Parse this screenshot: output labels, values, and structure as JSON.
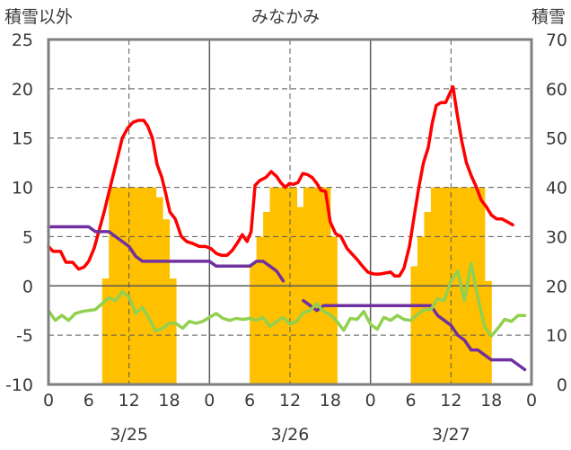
{
  "chart_data": {
    "type": "line",
    "title": "みなかみ",
    "left_axis_label": "積雪以外",
    "right_axis_label": "積雪",
    "y_left": {
      "min": -10,
      "max": 25,
      "ticks": [
        -10,
        -5,
        0,
        5,
        10,
        15,
        20,
        25
      ]
    },
    "y_right": {
      "min": 0,
      "max": 70,
      "ticks": [
        0,
        10,
        20,
        30,
        40,
        50,
        60,
        70
      ]
    },
    "x": {
      "min": 0,
      "max": 72,
      "hour_ticks": [
        0,
        6,
        12,
        18,
        0,
        6,
        12,
        18,
        0,
        6,
        12,
        18,
        0
      ],
      "day_boundaries": [
        24,
        48
      ],
      "dashed_hours": [
        12,
        36,
        60
      ]
    },
    "dates": [
      "3/25",
      "3/26",
      "3/27"
    ],
    "grid": true,
    "colors": {
      "red": "#ff0000",
      "purple": "#7030a0",
      "green": "#92d050",
      "bars": "#ffc000",
      "grid": "#595959",
      "frame": "#7f7f7f"
    },
    "series": [
      {
        "color_key": "red",
        "axis": "left",
        "points": [
          [
            0,
            4
          ],
          [
            0.7,
            3.5
          ],
          [
            1.8,
            3.5
          ],
          [
            2.6,
            2.4
          ],
          [
            3.6,
            2.4
          ],
          [
            4.5,
            1.7
          ],
          [
            5.3,
            1.9
          ],
          [
            6,
            2.5
          ],
          [
            6.8,
            3.8
          ],
          [
            7.5,
            5.5
          ],
          [
            8.3,
            7.5
          ],
          [
            9.2,
            10
          ],
          [
            10.1,
            12.5
          ],
          [
            11,
            15
          ],
          [
            11.8,
            16
          ],
          [
            12.6,
            16.6
          ],
          [
            13.4,
            16.8
          ],
          [
            14.2,
            16.8
          ],
          [
            14.8,
            16.2
          ],
          [
            15.5,
            15
          ],
          [
            16.2,
            12.3
          ],
          [
            16.9,
            11
          ],
          [
            17.5,
            9.3
          ],
          [
            18.1,
            7.5
          ],
          [
            18.9,
            6.8
          ],
          [
            19.8,
            5
          ],
          [
            20.6,
            4.5
          ],
          [
            21.5,
            4.3
          ],
          [
            22.5,
            4
          ],
          [
            23.4,
            4
          ],
          [
            24.2,
            3.8
          ],
          [
            25,
            3.3
          ],
          [
            25.8,
            3.1
          ],
          [
            26.6,
            3.1
          ],
          [
            27.4,
            3.6
          ],
          [
            28.2,
            4.4
          ],
          [
            28.9,
            5.2
          ],
          [
            29.6,
            4.5
          ],
          [
            30.2,
            5.5
          ],
          [
            30.8,
            10.2
          ],
          [
            31.5,
            10.7
          ],
          [
            32.4,
            11
          ],
          [
            33.2,
            11.6
          ],
          [
            34,
            11.1
          ],
          [
            34.6,
            10.5
          ],
          [
            35.3,
            10
          ],
          [
            35.9,
            10.4
          ],
          [
            36.5,
            10.3
          ],
          [
            37.2,
            10.5
          ],
          [
            37.9,
            11.4
          ],
          [
            38.6,
            11.3
          ],
          [
            39.3,
            11
          ],
          [
            40,
            10.4
          ],
          [
            40.6,
            9.7
          ],
          [
            41.3,
            9.6
          ],
          [
            42,
            6.5
          ],
          [
            42.8,
            5.3
          ],
          [
            43.6,
            5
          ],
          [
            44.5,
            3.8
          ],
          [
            45.3,
            3.2
          ],
          [
            46.1,
            2.6
          ],
          [
            46.8,
            2
          ],
          [
            47.6,
            1.4
          ],
          [
            48.5,
            1.2
          ],
          [
            49.4,
            1.2
          ],
          [
            50.2,
            1.3
          ],
          [
            51,
            1.4
          ],
          [
            51.6,
            1
          ],
          [
            52.3,
            1
          ],
          [
            53,
            1.8
          ],
          [
            53.8,
            4
          ],
          [
            54.5,
            7
          ],
          [
            55.2,
            10
          ],
          [
            55.9,
            12.5
          ],
          [
            56.6,
            14
          ],
          [
            57.2,
            16.5
          ],
          [
            57.8,
            18.3
          ],
          [
            58.5,
            18.6
          ],
          [
            59.2,
            18.6
          ],
          [
            59.8,
            19.5
          ],
          [
            60.3,
            20.2
          ],
          [
            60.9,
            17.5
          ],
          [
            61.6,
            14.7
          ],
          [
            62.3,
            12.5
          ],
          [
            63,
            11.2
          ],
          [
            63.8,
            10
          ],
          [
            64.5,
            8.7
          ],
          [
            65.3,
            8
          ],
          [
            66,
            7.2
          ],
          [
            66.8,
            6.8
          ],
          [
            67.6,
            6.8
          ],
          [
            68.4,
            6.5
          ],
          [
            69.2,
            6.2
          ]
        ]
      },
      {
        "color_key": "purple",
        "axis": "left",
        "points": [
          [
            0,
            6
          ],
          [
            1,
            6
          ],
          [
            2,
            6
          ],
          [
            3,
            6
          ],
          [
            4,
            6
          ],
          [
            5,
            6
          ],
          [
            6,
            6
          ],
          [
            7,
            5.5
          ],
          [
            8,
            5.5
          ],
          [
            9,
            5.5
          ],
          [
            10,
            5
          ],
          [
            11,
            4.5
          ],
          [
            12,
            4
          ],
          [
            13,
            3
          ],
          [
            14,
            2.5
          ],
          [
            15,
            2.5
          ],
          [
            16,
            2.5
          ],
          [
            17,
            2.5
          ],
          [
            18,
            2.5
          ],
          [
            19,
            2.5
          ],
          [
            20,
            2.5
          ],
          [
            21,
            2.5
          ],
          [
            22,
            2.5
          ],
          [
            23,
            2.5
          ],
          [
            24,
            2.5
          ],
          [
            25,
            2
          ],
          [
            26,
            2
          ],
          [
            27,
            2
          ],
          [
            28,
            2
          ],
          [
            29,
            2
          ],
          [
            30,
            2
          ],
          [
            31,
            2.5
          ],
          [
            32,
            2.5
          ],
          [
            33,
            2
          ],
          [
            34,
            1.5
          ],
          [
            35,
            0.5
          ]
        ]
      },
      {
        "color_key": "purple",
        "axis": "left",
        "points": [
          [
            38,
            -1.5
          ],
          [
            39,
            -2
          ],
          [
            40,
            -2.5
          ],
          [
            41,
            -2
          ],
          [
            42,
            -2
          ],
          [
            43,
            -2
          ],
          [
            44,
            -2
          ],
          [
            45,
            -2
          ],
          [
            46,
            -2
          ],
          [
            47,
            -2
          ],
          [
            48,
            -2
          ],
          [
            49,
            -2
          ],
          [
            50,
            -2
          ],
          [
            51,
            -2
          ],
          [
            52,
            -2
          ],
          [
            53,
            -2
          ],
          [
            54,
            -2
          ],
          [
            55,
            -2
          ],
          [
            56,
            -2
          ],
          [
            57,
            -2
          ],
          [
            58,
            -3
          ],
          [
            59,
            -3.5
          ],
          [
            60,
            -4
          ],
          [
            61,
            -5
          ],
          [
            62,
            -5.5
          ],
          [
            63,
            -6.5
          ],
          [
            64,
            -6.5
          ],
          [
            65,
            -7
          ],
          [
            66,
            -7.5
          ],
          [
            67,
            -7.5
          ],
          [
            68,
            -7.5
          ],
          [
            69,
            -7.5
          ],
          [
            70,
            -8
          ],
          [
            71,
            -8.5
          ]
        ]
      },
      {
        "color_key": "green",
        "axis": "left",
        "points": [
          [
            0,
            -2.5
          ],
          [
            1,
            -3.5
          ],
          [
            2,
            -3
          ],
          [
            3,
            -3.5
          ],
          [
            4,
            -2.8
          ],
          [
            5,
            -2.6
          ],
          [
            6,
            -2.5
          ],
          [
            7,
            -2.4
          ],
          [
            8,
            -1.8
          ],
          [
            9,
            -1.2
          ],
          [
            10,
            -1.5
          ],
          [
            11,
            -0.6
          ],
          [
            12,
            -1.1
          ],
          [
            13,
            -2.8
          ],
          [
            14,
            -2.2
          ],
          [
            15,
            -3.3
          ],
          [
            16,
            -4.6
          ],
          [
            17,
            -4.3
          ],
          [
            18,
            -3.8
          ],
          [
            19,
            -3.8
          ],
          [
            20,
            -4.3
          ],
          [
            21,
            -3.6
          ],
          [
            22,
            -3.8
          ],
          [
            23,
            -3.6
          ],
          [
            24,
            -3.2
          ],
          [
            25,
            -2.8
          ],
          [
            26,
            -3.3
          ],
          [
            27,
            -3.5
          ],
          [
            28,
            -3.3
          ],
          [
            29,
            -3.4
          ],
          [
            30,
            -3.3
          ],
          [
            31,
            -3.5
          ],
          [
            32,
            -3.2
          ],
          [
            33,
            -4.1
          ],
          [
            34,
            -3.6
          ],
          [
            35,
            -3.2
          ],
          [
            36,
            -3.9
          ],
          [
            37,
            -3.6
          ],
          [
            38,
            -2.7
          ],
          [
            39,
            -2.5
          ],
          [
            40,
            -1.8
          ],
          [
            41,
            -2.6
          ],
          [
            42,
            -2.9
          ],
          [
            43,
            -3.6
          ],
          [
            44,
            -4.5
          ],
          [
            45,
            -3.3
          ],
          [
            46,
            -3.4
          ],
          [
            47,
            -2.6
          ],
          [
            48,
            -3.9
          ],
          [
            49,
            -4.4
          ],
          [
            50,
            -3.2
          ],
          [
            51,
            -3.5
          ],
          [
            52,
            -3.0
          ],
          [
            53,
            -3.4
          ],
          [
            54,
            -3.5
          ],
          [
            55,
            -2.9
          ],
          [
            56,
            -2.4
          ],
          [
            57,
            -2.4
          ],
          [
            58,
            -1.3
          ],
          [
            59,
            -1.5
          ],
          [
            60,
            0.5
          ],
          [
            61,
            1.5
          ],
          [
            62,
            -1.5
          ],
          [
            63,
            2.3
          ],
          [
            64,
            -1.2
          ],
          [
            65,
            -4.1
          ],
          [
            66,
            -5.1
          ],
          [
            67,
            -4.3
          ],
          [
            68,
            -3.4
          ],
          [
            69,
            -3.6
          ],
          [
            70,
            -3.0
          ],
          [
            71,
            -3
          ]
        ]
      }
    ],
    "bars": {
      "color_key": "bars",
      "axis": "right",
      "width_hours": 1,
      "items": [
        [
          8.5,
          21.5
        ],
        [
          9.5,
          40
        ],
        [
          10.5,
          40
        ],
        [
          11.5,
          40
        ],
        [
          12.5,
          40
        ],
        [
          13.5,
          40
        ],
        [
          14.5,
          40
        ],
        [
          15.5,
          40
        ],
        [
          16.5,
          38
        ],
        [
          17.5,
          33.5
        ],
        [
          18.5,
          21.5
        ],
        [
          30.5,
          24.5
        ],
        [
          31.5,
          30
        ],
        [
          32.5,
          35
        ],
        [
          33.5,
          40
        ],
        [
          34.5,
          40
        ],
        [
          35.5,
          40
        ],
        [
          36.5,
          40
        ],
        [
          37.5,
          36
        ],
        [
          38.5,
          40
        ],
        [
          39.5,
          40
        ],
        [
          40.5,
          40
        ],
        [
          41.5,
          40
        ],
        [
          42.5,
          30
        ],
        [
          54.5,
          24
        ],
        [
          55.5,
          30
        ],
        [
          56.5,
          35
        ],
        [
          57.5,
          40
        ],
        [
          58.5,
          40
        ],
        [
          59.5,
          40
        ],
        [
          60.5,
          40
        ],
        [
          61.5,
          40
        ],
        [
          62.5,
          40
        ],
        [
          63.5,
          40
        ],
        [
          64.5,
          40
        ],
        [
          65.5,
          21
        ]
      ]
    }
  }
}
